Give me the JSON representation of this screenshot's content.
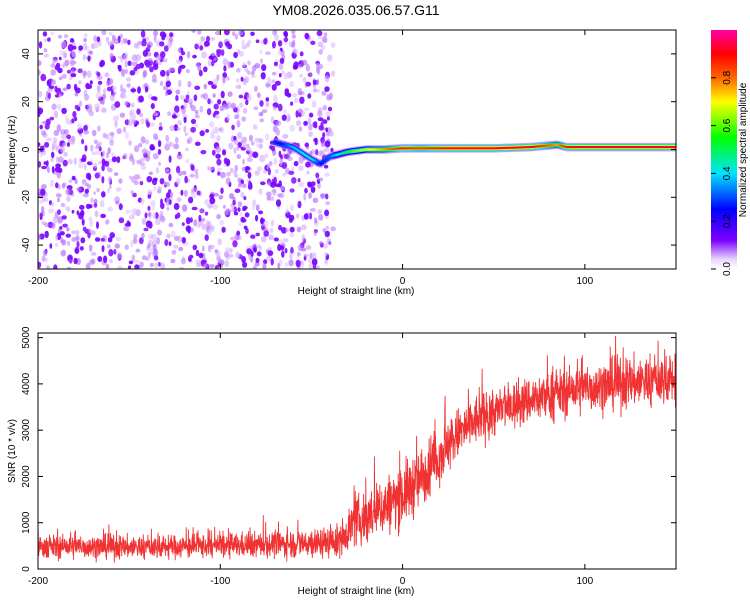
{
  "title": "YM08.2026.035.06.57.G11",
  "chart_data": [
    {
      "type": "heatmap",
      "title": "YM08.2026.035.06.57.G11",
      "xlabel": "Height of straight line (km)",
      "ylabel": "Frequency (Hz)",
      "xlim": [
        -200,
        150
      ],
      "ylim": [
        -50,
        50
      ],
      "xticks": [
        -200,
        -100,
        0,
        100
      ],
      "xtick_labels": [
        "-200",
        "-100",
        "0",
        "100"
      ],
      "yticks": [
        -40,
        -20,
        0,
        20,
        40
      ],
      "ytick_labels": [
        "-40",
        "-20",
        "0",
        "20",
        "40"
      ],
      "colorbar": {
        "label": "Normalized spectral amplitude",
        "range": [
          0,
          1
        ],
        "ticks": [
          0,
          0.2,
          0.4,
          0.6,
          0.8
        ],
        "tick_labels": [
          "0.0",
          "0.2",
          "0.4",
          "0.6",
          "0.8"
        ],
        "colors": [
          "#ffffff",
          "#7d00ff",
          "#0000ff",
          "#00e5ff",
          "#00ff00",
          "#ffff00",
          "#ff6600",
          "#ff0000",
          "#ff00aa"
        ]
      },
      "noise_region": {
        "x_range": [
          -200,
          -38
        ],
        "y_range": [
          -50,
          50
        ],
        "typical_amplitude": 0.05
      },
      "signal_ridge": {
        "x": [
          -70,
          -60,
          -50,
          -45,
          -40,
          -35,
          -30,
          -20,
          -10,
          0,
          10,
          30,
          50,
          70,
          85,
          90,
          100,
          120,
          150
        ],
        "frequency": [
          3,
          1,
          -4,
          -6,
          -3,
          -2,
          -1,
          0,
          0,
          0.5,
          0.5,
          0.5,
          0.5,
          1,
          2,
          1,
          1,
          1,
          1
        ],
        "amplitude": [
          0.2,
          0.35,
          0.4,
          0.25,
          0.3,
          0.4,
          0.5,
          0.6,
          0.7,
          0.85,
          0.8,
          0.9,
          0.9,
          0.9,
          0.7,
          0.85,
          0.9,
          0.9,
          0.9
        ]
      }
    },
    {
      "type": "line",
      "xlabel": "Height of straight line (km)",
      "ylabel": "SNR (10 * v/v)",
      "xlim": [
        -200,
        150
      ],
      "ylim": [
        0,
        5100
      ],
      "xticks": [
        -200,
        -100,
        0,
        100
      ],
      "xtick_labels": [
        "-200",
        "-100",
        "0",
        "100"
      ],
      "yticks": [
        0,
        1000,
        2000,
        3000,
        4000,
        5000
      ],
      "ytick_labels": [
        "0",
        "1000",
        "2000",
        "3000",
        "4000",
        "5000"
      ],
      "color": "#f03232",
      "series": [
        {
          "name": "SNR",
          "x": [
            -200,
            -175,
            -150,
            -125,
            -100,
            -75,
            -50,
            -35,
            -27,
            -20,
            -10,
            0,
            10,
            20,
            30,
            40,
            50,
            60,
            70,
            80,
            90,
            100,
            110,
            120,
            130,
            140,
            150
          ],
          "mean": [
            480,
            480,
            470,
            480,
            500,
            530,
            560,
            590,
            1000,
            1100,
            1350,
            1600,
            1950,
            2450,
            2900,
            3200,
            3380,
            3520,
            3650,
            3750,
            3820,
            3900,
            3950,
            4000,
            4050,
            4080,
            4100
          ],
          "spread": [
            220,
            220,
            220,
            220,
            230,
            240,
            280,
            300,
            450,
            500,
            550,
            600,
            600,
            550,
            500,
            480,
            460,
            450,
            450,
            450,
            450,
            460,
            470,
            480,
            480,
            480,
            480
          ]
        }
      ]
    }
  ]
}
